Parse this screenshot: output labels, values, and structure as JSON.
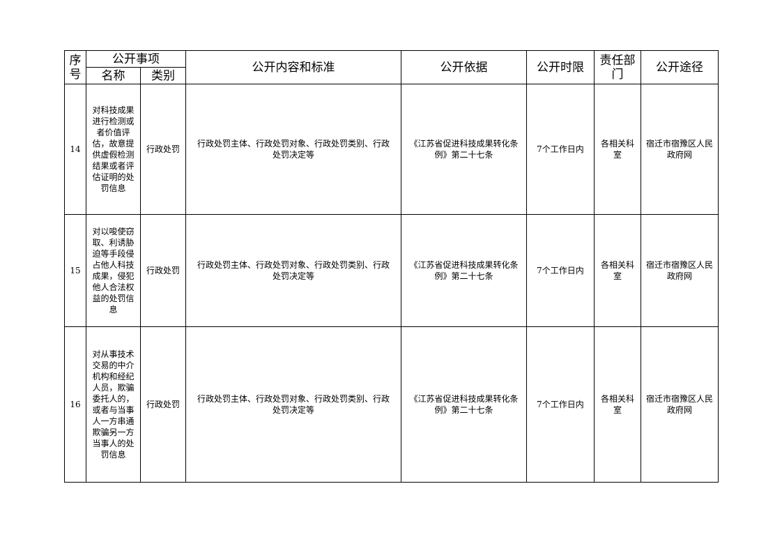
{
  "header": {
    "seq": "序号",
    "item_group": "公开事项",
    "name": "名称",
    "category": "类别",
    "content": "公开内容和标准",
    "basis": "公开依据",
    "time_limit": "公开时限",
    "department": "责任部门",
    "channel": "公开途径"
  },
  "rows": [
    {
      "seq": "14",
      "name": "对科技成果进行检测或者价值评估，故意提供虚假检测结果或者评估证明的处罚信息",
      "category": "行政处罚",
      "content": "行政处罚主体、行政处罚对象、行政处罚类别、行政处罚决定等",
      "basis": "《江苏省促进科技成果转化条例》第二十七条",
      "time_limit": "7个工作日内",
      "department": "各相关科室",
      "channel": "宿迁市宿豫区人民政府网"
    },
    {
      "seq": "15",
      "name": "对以唆使窃取、利诱胁迫等手段侵占他人科技成果，侵犯他人合法权益的处罚信息",
      "category": "行政处罚",
      "content": "行政处罚主体、行政处罚对象、行政处罚类别、行政处罚决定等",
      "basis": "《江苏省促进科技成果转化条例》第二十七条",
      "time_limit": "7个工作日内",
      "department": "各相关科室",
      "channel": "宿迁市宿豫区人民政府网"
    },
    {
      "seq": "16",
      "name": "对从事技术交易的中介机构和经纪人员，欺骗委托人的，或者与当事人一方串通欺骗另一方当事人的处罚信息",
      "category": "行政处罚",
      "content": "行政处罚主体、行政处罚对象、行政处罚类别、行政处罚决定等",
      "basis": "《江苏省促进科技成果转化条例》第二十七条",
      "time_limit": "7个工作日内",
      "department": "各相关科室",
      "channel": "宿迁市宿豫区人民政府网"
    }
  ]
}
